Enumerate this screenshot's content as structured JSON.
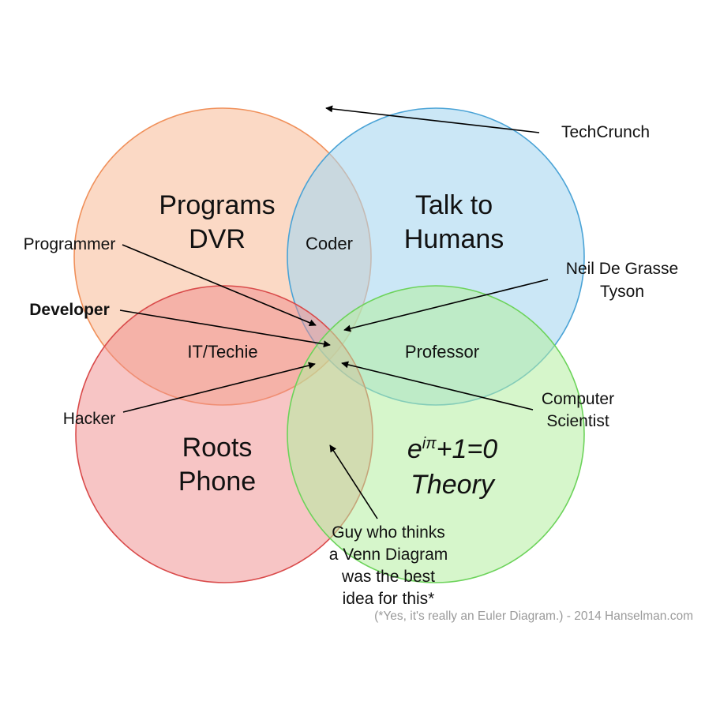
{
  "circles": {
    "programs_dvr": {
      "label_line1": "Programs",
      "label_line2": "DVR",
      "fill": "#f9c9ad",
      "stroke": "#f0905a"
    },
    "talk_to_humans": {
      "label_line1": "Talk to",
      "label_line2": "Humans",
      "fill": "#a9d7f0",
      "stroke": "#4aa3d6"
    },
    "roots_phone": {
      "label_line1": "Roots",
      "label_line2": "Phone",
      "fill": "#f08c8c",
      "stroke": "#d94a4a"
    },
    "theory": {
      "formula_base": "e",
      "formula_exp": "iπ",
      "formula_rest": "+1=0",
      "label_line2": "Theory",
      "fill": "#b4eea0",
      "stroke": "#6cd35a"
    }
  },
  "intersections": {
    "coder": "Coder",
    "it_techie": "IT/Techie",
    "professor": "Professor"
  },
  "annotations": {
    "techcrunch": "TechCrunch",
    "programmer": "Programmer",
    "developer": "Developer",
    "hacker": "Hacker",
    "tyson_line1": "Neil De Grasse",
    "tyson_line2": "Tyson",
    "scientist_line1": "Computer",
    "scientist_line2": "Scientist",
    "guy_line1": "Guy who thinks",
    "guy_line2": "a Venn Diagram",
    "guy_line3": "was the best",
    "guy_line4": "idea for this*"
  },
  "credit": "(*Yes, it's really an Euler Diagram.) - 2014 Hanselman.com"
}
